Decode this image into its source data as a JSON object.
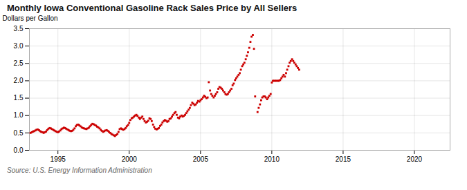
{
  "chart_data": {
    "type": "scatter",
    "title": "Monthly Iowa Conventional Gasoline Rack Sales Price by All Sellers",
    "ylabel": "Dollars per Gallon",
    "source": "Source: U.S. Energy Information Administration",
    "color": "#CC0000",
    "marker": "square",
    "grid": true,
    "xlim": [
      1993.0,
      2022.5
    ],
    "ylim": [
      0.0,
      3.5
    ],
    "xticks": [
      1995,
      2000,
      2005,
      2010,
      2015,
      2020
    ],
    "yticks": [
      {
        "value": 0.0,
        "label": "0.0"
      },
      0.5,
      {
        "value": 1.0,
        "label": "1.0"
      },
      1.5,
      {
        "value": 2.0,
        "label": "2.0"
      },
      2.5,
      {
        "value": 3.0,
        "label": "3.0"
      },
      3.5
    ],
    "x": [
      1993.08,
      1993.17,
      1993.25,
      1993.33,
      1993.42,
      1993.5,
      1993.58,
      1993.67,
      1993.75,
      1993.83,
      1993.92,
      1994.0,
      1994.08,
      1994.17,
      1994.25,
      1994.33,
      1994.42,
      1994.5,
      1994.58,
      1994.67,
      1994.75,
      1994.83,
      1994.92,
      1995.0,
      1995.08,
      1995.17,
      1995.25,
      1995.33,
      1995.42,
      1995.5,
      1995.58,
      1995.67,
      1995.75,
      1995.83,
      1995.92,
      1996.0,
      1996.08,
      1996.17,
      1996.25,
      1996.33,
      1996.42,
      1996.5,
      1996.58,
      1996.67,
      1996.75,
      1996.83,
      1996.92,
      1997.0,
      1997.08,
      1997.17,
      1997.25,
      1997.33,
      1997.42,
      1997.5,
      1997.58,
      1997.67,
      1997.75,
      1997.83,
      1997.92,
      1998.0,
      1998.08,
      1998.17,
      1998.25,
      1998.33,
      1998.42,
      1998.5,
      1998.58,
      1998.67,
      1998.75,
      1998.83,
      1998.92,
      1999.0,
      1999.08,
      1999.17,
      1999.25,
      1999.33,
      1999.42,
      1999.5,
      1999.58,
      1999.67,
      1999.75,
      1999.83,
      1999.92,
      2000.0,
      2000.08,
      2000.17,
      2000.25,
      2000.33,
      2000.42,
      2000.5,
      2000.58,
      2000.67,
      2000.75,
      2000.83,
      2000.92,
      2001.0,
      2001.08,
      2001.17,
      2001.25,
      2001.33,
      2001.42,
      2001.5,
      2001.58,
      2001.67,
      2001.75,
      2001.83,
      2001.92,
      2002.0,
      2002.08,
      2002.17,
      2002.25,
      2002.33,
      2002.42,
      2002.5,
      2002.58,
      2002.67,
      2002.75,
      2002.83,
      2002.92,
      2003.0,
      2003.08,
      2003.17,
      2003.25,
      2003.33,
      2003.42,
      2003.5,
      2003.58,
      2003.67,
      2003.75,
      2003.83,
      2003.92,
      2004.0,
      2004.08,
      2004.17,
      2004.25,
      2004.33,
      2004.42,
      2004.5,
      2004.58,
      2004.67,
      2004.75,
      2004.83,
      2004.92,
      2005.0,
      2005.08,
      2005.17,
      2005.25,
      2005.33,
      2005.42,
      2005.5,
      2005.58,
      2005.67,
      2005.75,
      2005.83,
      2005.92,
      2006.0,
      2006.08,
      2006.17,
      2006.25,
      2006.33,
      2006.42,
      2006.5,
      2006.58,
      2006.67,
      2006.75,
      2006.83,
      2006.92,
      2007.0,
      2007.08,
      2007.17,
      2007.25,
      2007.33,
      2007.42,
      2007.5,
      2007.58,
      2007.67,
      2007.75,
      2007.83,
      2007.92,
      2008.0,
      2008.08,
      2008.17,
      2008.25,
      2008.33,
      2008.42,
      2008.5,
      2008.58,
      2008.67,
      2008.75,
      2008.83,
      2009.0,
      2009.08,
      2009.17,
      2009.25,
      2009.33,
      2009.42,
      2009.5,
      2009.58,
      2009.67,
      2009.75,
      2009.83,
      2009.92,
      2010.0,
      2010.08,
      2010.17,
      2010.25,
      2010.33,
      2010.42,
      2010.5,
      2010.58,
      2010.67,
      2010.75,
      2010.83,
      2010.92,
      2011.0,
      2011.08,
      2011.17,
      2011.25,
      2011.33,
      2011.42,
      2011.5,
      2011.58,
      2011.67,
      2011.75,
      2011.83,
      2011.92
    ],
    "values": [
      0.5,
      0.52,
      0.54,
      0.55,
      0.57,
      0.59,
      0.6,
      0.58,
      0.55,
      0.53,
      0.52,
      0.5,
      0.52,
      0.54,
      0.58,
      0.62,
      0.64,
      0.63,
      0.61,
      0.59,
      0.57,
      0.55,
      0.53,
      0.52,
      0.54,
      0.57,
      0.61,
      0.63,
      0.65,
      0.64,
      0.62,
      0.6,
      0.58,
      0.56,
      0.55,
      0.56,
      0.59,
      0.63,
      0.69,
      0.73,
      0.74,
      0.72,
      0.69,
      0.66,
      0.64,
      0.63,
      0.62,
      0.61,
      0.63,
      0.65,
      0.69,
      0.73,
      0.76,
      0.75,
      0.73,
      0.71,
      0.68,
      0.66,
      0.63,
      0.59,
      0.56,
      0.53,
      0.55,
      0.57,
      0.58,
      0.56,
      0.53,
      0.5,
      0.47,
      0.45,
      0.43,
      0.41,
      0.44,
      0.47,
      0.53,
      0.61,
      0.63,
      0.61,
      0.59,
      0.61,
      0.64,
      0.69,
      0.73,
      0.79,
      0.87,
      0.92,
      0.94,
      0.97,
      1.0,
      1.02,
      0.99,
      0.94,
      0.9,
      0.94,
      0.97,
      0.9,
      0.84,
      0.8,
      0.82,
      0.85,
      0.92,
      0.9,
      0.84,
      0.74,
      0.67,
      0.62,
      0.6,
      0.62,
      0.64,
      0.7,
      0.74,
      0.8,
      0.84,
      0.87,
      0.85,
      0.82,
      0.84,
      0.9,
      0.92,
      0.97,
      1.02,
      1.07,
      1.1,
      1.02,
      0.94,
      0.92,
      0.97,
      1.0,
      0.97,
      0.99,
      1.02,
      1.07,
      1.12,
      1.17,
      1.22,
      1.3,
      1.37,
      1.34,
      1.3,
      1.32,
      1.37,
      1.42,
      1.4,
      1.44,
      1.47,
      1.52,
      1.57,
      1.54,
      1.5,
      1.52,
      1.96,
      1.72,
      1.62,
      1.57,
      1.52,
      1.57,
      1.62,
      1.67,
      1.77,
      1.82,
      1.8,
      1.77,
      1.72,
      1.67,
      1.62,
      1.6,
      1.62,
      1.67,
      1.72,
      1.77,
      1.87,
      1.92,
      2.02,
      2.07,
      2.12,
      2.17,
      2.22,
      2.32,
      2.42,
      2.47,
      2.52,
      2.62,
      2.72,
      2.82,
      2.95,
      3.12,
      3.27,
      3.32,
      2.92,
      1.55,
      1.1,
      1.22,
      1.32,
      1.44,
      1.52,
      1.55,
      1.55,
      1.52,
      1.47,
      1.52,
      1.57,
      1.62,
      1.95,
      2.0,
      2.0,
      2.0,
      2.0,
      2.0,
      2.0,
      2.02,
      2.07,
      2.12,
      2.17,
      2.12,
      2.22,
      2.32,
      2.42,
      2.52,
      2.57,
      2.62,
      2.57,
      2.52,
      2.47,
      2.42,
      2.37,
      2.32
    ]
  }
}
